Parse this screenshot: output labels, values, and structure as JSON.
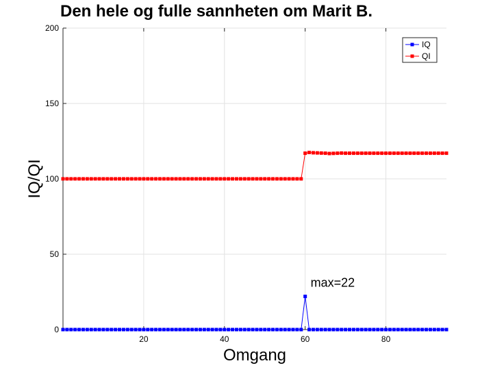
{
  "chart_data": {
    "type": "line",
    "title": "Den hele og fulle sannheten om Marit B.",
    "xlabel": "Omgang",
    "ylabel": "IQ/QI",
    "xlim": [
      0,
      95
    ],
    "ylim": [
      0,
      200
    ],
    "xticks": [
      20,
      40,
      60,
      80
    ],
    "yticks": [
      0,
      50,
      100,
      150,
      200
    ],
    "grid": true,
    "legend_position": "top-right",
    "series": [
      {
        "name": "IQ",
        "color": "#0000ff",
        "marker": "square",
        "x": [
          0,
          59,
          60,
          61,
          95
        ],
        "y": [
          0,
          0,
          22,
          0,
          0
        ]
      },
      {
        "name": "QI",
        "color": "#ff0000",
        "marker": "square",
        "x": [
          0,
          59,
          60,
          61,
          62,
          63,
          64,
          65,
          66,
          67,
          68,
          69,
          70,
          72,
          75,
          80,
          85,
          90,
          95
        ],
        "y": [
          100,
          100,
          117,
          117.5,
          117.3,
          117.2,
          117.1,
          117,
          116.8,
          116.9,
          117,
          117.1,
          117,
          117,
          117,
          117,
          117,
          117,
          117
        ]
      }
    ],
    "annotations": [
      {
        "text": "max=22",
        "x": 61,
        "y": 27
      }
    ]
  }
}
